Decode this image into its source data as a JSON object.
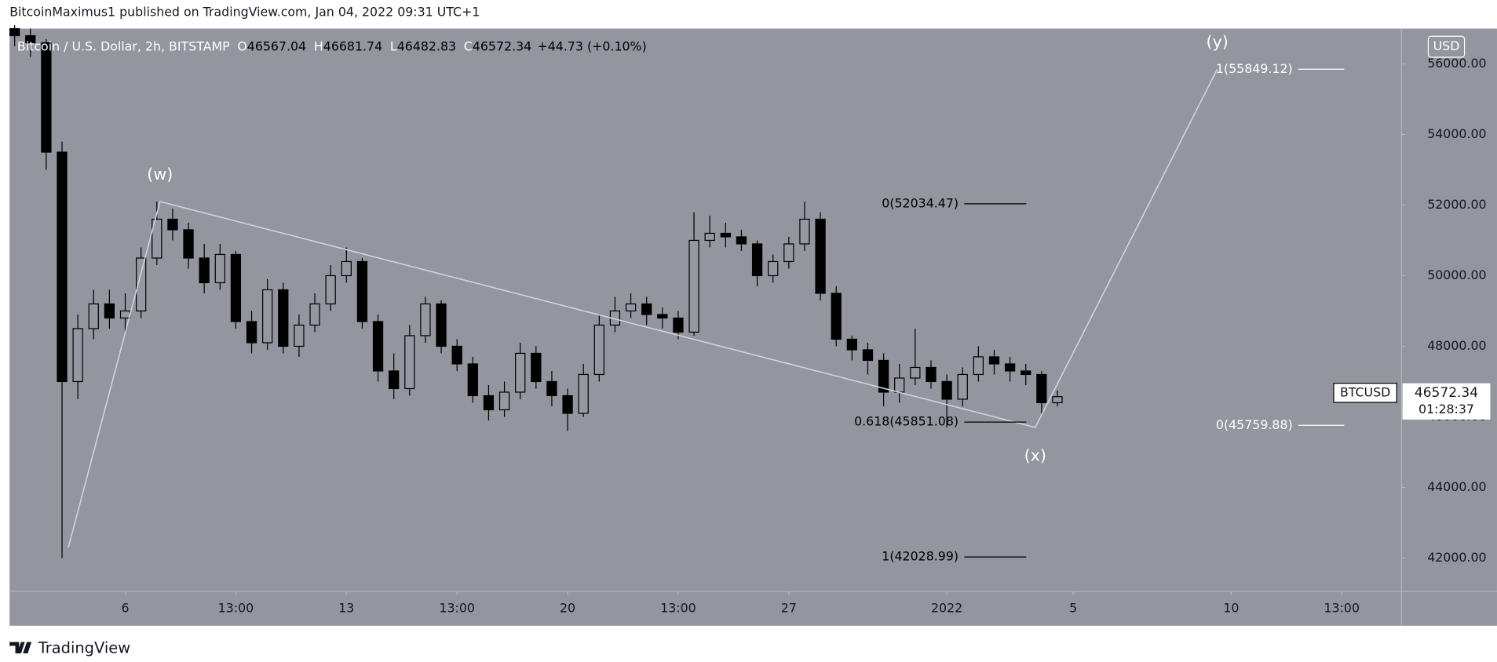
{
  "header": {
    "text": "BitcoinMaximus1 published on TradingView.com, Jan 04, 2022 09:31 UTC+1"
  },
  "footer": {
    "brand": "TradingView"
  },
  "chart_data": {
    "type": "candlestick",
    "symbol": "Bitcoin / U.S. Dollar, 2h, BITSTAMP",
    "ohlc_legend": [
      {
        "key": "O",
        "value": "46567.04"
      },
      {
        "key": "H",
        "value": "46681.74"
      },
      {
        "key": "L",
        "value": "46482.83"
      },
      {
        "key": "C",
        "value": "46572.34"
      }
    ],
    "change": "+44.73 (+0.10%)",
    "currency": "USD",
    "x": [
      2.5,
      3,
      3.5,
      4,
      4.5,
      5,
      5.5,
      6,
      6.5,
      7,
      7.5,
      8,
      8.5,
      9,
      9.5,
      10,
      10.5,
      11,
      11.5,
      12,
      12.5,
      13,
      13.5,
      14,
      14.5,
      15,
      15.5,
      16,
      16.5,
      17,
      17.5,
      18,
      18.5,
      19,
      19.5,
      20,
      20.5,
      21,
      21.5,
      22,
      22.5,
      23,
      23.5,
      24,
      24.5,
      25,
      25.5,
      26,
      26.5,
      27,
      27.5,
      28,
      28.5,
      29,
      29.5,
      30,
      30.5,
      31,
      31.5,
      32,
      32.5,
      33,
      33.5,
      34,
      34.5,
      35,
      35.5
    ],
    "open": [
      57000,
      56800,
      56600,
      53500,
      47000,
      48500,
      49200,
      48800,
      49000,
      50500,
      51600,
      51300,
      50500,
      49800,
      50600,
      48700,
      48100,
      49600,
      48000,
      48600,
      49200,
      50000,
      50400,
      48700,
      47300,
      46800,
      48300,
      49200,
      48000,
      47500,
      46600,
      46200,
      46700,
      47800,
      47000,
      46600,
      46100,
      47200,
      48600,
      49000,
      49200,
      48900,
      48800,
      48400,
      51000,
      51200,
      51100,
      50900,
      50000,
      50400,
      50900,
      51600,
      49500,
      48200,
      47900,
      47600,
      46700,
      47100,
      47400,
      47000,
      46500,
      47200,
      47700,
      47500,
      47300,
      47200,
      46400
    ],
    "high": [
      57100,
      57000,
      56700,
      53800,
      48900,
      49600,
      49600,
      49500,
      50800,
      52100,
      51900,
      51500,
      50900,
      50900,
      50700,
      49000,
      49900,
      49800,
      48900,
      49500,
      50300,
      50800,
      50500,
      48900,
      47800,
      48600,
      49400,
      49300,
      48200,
      47700,
      46900,
      47000,
      48100,
      48000,
      47300,
      46800,
      47500,
      48900,
      49400,
      49500,
      49400,
      49100,
      49000,
      51800,
      51700,
      51500,
      51300,
      51000,
      50600,
      51100,
      52100,
      51800,
      49700,
      48300,
      48100,
      47800,
      47500,
      48500,
      47600,
      47200,
      47400,
      48000,
      47900,
      47700,
      47500,
      47300,
      46750
    ],
    "low": [
      56500,
      56200,
      53000,
      42000,
      46500,
      48200,
      48500,
      48400,
      48800,
      50300,
      51000,
      50200,
      49500,
      49600,
      48500,
      47800,
      47900,
      47800,
      47700,
      48400,
      49000,
      49800,
      48500,
      47000,
      46500,
      46600,
      48100,
      47800,
      47300,
      46400,
      45900,
      46000,
      46500,
      46800,
      46300,
      45600,
      46000,
      47000,
      48400,
      48800,
      48600,
      48500,
      48200,
      48300,
      50800,
      50800,
      50700,
      49700,
      49800,
      50200,
      50700,
      49300,
      48000,
      47600,
      47200,
      46300,
      46400,
      46900,
      46800,
      45700,
      46300,
      47000,
      47200,
      47000,
      46900,
      46100,
      46300
    ],
    "close": [
      56800,
      56600,
      53500,
      47000,
      48500,
      49200,
      48800,
      49000,
      50500,
      51600,
      51300,
      50500,
      49800,
      50600,
      48700,
      48100,
      49600,
      48000,
      48600,
      49200,
      50000,
      50400,
      48700,
      47300,
      46800,
      48300,
      49200,
      48000,
      47500,
      46600,
      46200,
      46700,
      47800,
      47000,
      46600,
      46100,
      47200,
      48600,
      49000,
      49200,
      48900,
      48800,
      48400,
      51000,
      51200,
      51100,
      50900,
      50000,
      50400,
      50900,
      51600,
      49500,
      48200,
      47900,
      47600,
      46700,
      47100,
      47400,
      47000,
      46500,
      47200,
      47700,
      47500,
      47300,
      47200,
      46400,
      46572
    ],
    "up_color": "#9598a1",
    "down_color": "#000000",
    "xlim": [
      2.34,
      46.39
    ],
    "xticks": [
      6,
      {
        "value": 9.5,
        "label": "13:00"
      },
      13,
      {
        "value": 16.5,
        "label": "13:00"
      },
      20,
      {
        "value": 23.5,
        "label": "13:00"
      },
      27,
      {
        "value": 32,
        "label": "2022"
      },
      {
        "value": 36,
        "label": "5"
      },
      {
        "value": 41,
        "label": "10"
      },
      {
        "value": 44.5,
        "label": "13:00"
      }
    ],
    "ylim": [
      41054,
      57000
    ],
    "yticks": [
      {
        "value": 42000,
        "label": "42000.00"
      },
      {
        "value": 44000,
        "label": "44000.00"
      },
      {
        "value": 46000,
        "label": "46000.00"
      },
      {
        "value": 48000,
        "label": "48000.00"
      },
      {
        "value": 50000,
        "label": "50000.00"
      },
      {
        "value": 52000,
        "label": "52000.00"
      },
      {
        "value": 54000,
        "label": "54000.00"
      },
      {
        "value": 56000,
        "label": "56000.00"
      }
    ],
    "grid": false,
    "wave": {
      "x": [
        4.2,
        7.1,
        34.8,
        40.56
      ],
      "y": [
        42300,
        52100,
        45700,
        55849.12
      ],
      "labels": [
        null,
        "(w)",
        "(x)",
        "(y)"
      ],
      "color": "#d1d4dc"
    },
    "fib_left": [
      {
        "label": "0(52034.47)",
        "value": 52034.47
      },
      {
        "label": "0.618(45851.08)",
        "value": 45851.08
      },
      {
        "label": "1(42028.99)",
        "value": 42028.99
      }
    ],
    "fib_right": [
      {
        "label": "1(55849.12)",
        "value": 55849.12
      },
      {
        "label": "0(45759.88)",
        "value": 45759.88
      }
    ],
    "last_price": {
      "symbol": "BTCUSD",
      "value": 46572.34,
      "countdown": "01:28:37"
    }
  }
}
